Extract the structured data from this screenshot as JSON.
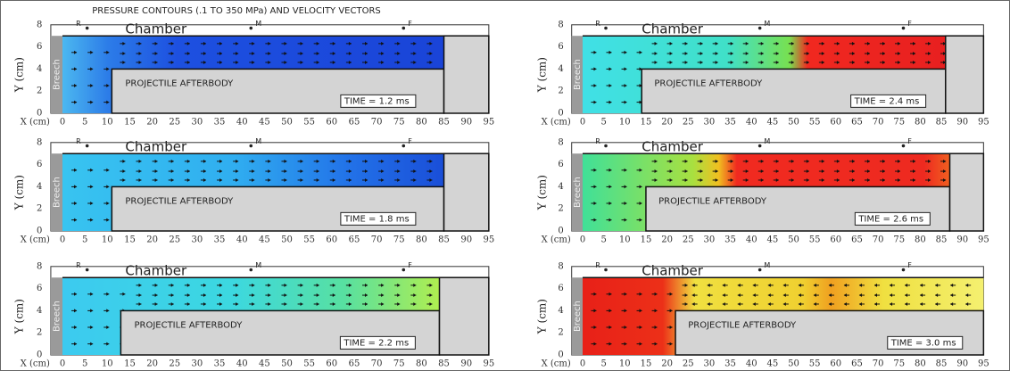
{
  "title": "PRESSURE CONTOURS (.1 TO 350 MPa) AND VELOCITY VECTORS",
  "axes": {
    "y_label": "Y (cm)",
    "x_label": "X (cm)",
    "y_ticks": [
      0,
      2,
      4,
      6,
      8
    ],
    "x_ticks": [
      0,
      5,
      10,
      15,
      20,
      25,
      30,
      35,
      40,
      45,
      50,
      55,
      60,
      65,
      70,
      75,
      80,
      85,
      90,
      95
    ]
  },
  "labels": {
    "chamber": "Chamber",
    "breech": "Breech",
    "afterbody": "PROJECTILE AFTERBODY",
    "points": [
      "R",
      "M",
      "F"
    ]
  },
  "panels": [
    {
      "time": "TIME = 1.2 ms"
    },
    {
      "time": "TIME = 1.8 ms"
    },
    {
      "time": "TIME = 2.2 ms"
    },
    {
      "time": "TIME = 2.4 ms"
    },
    {
      "time": "TIME = 2.6 ms"
    },
    {
      "time": "TIME = 3.0 ms"
    }
  ]
}
